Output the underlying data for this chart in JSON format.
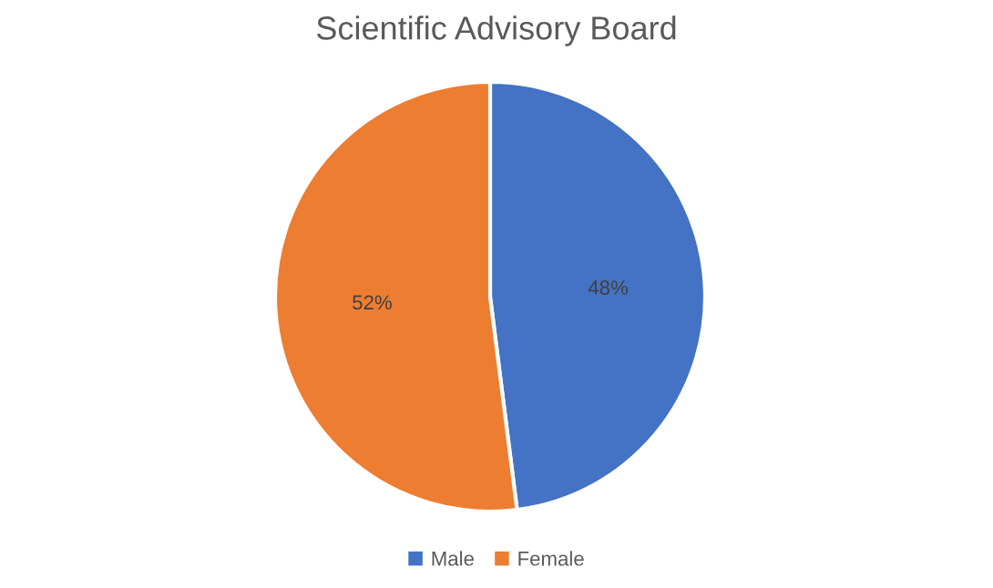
{
  "chart_data": {
    "type": "pie",
    "title": "Scientific Advisory Board",
    "categories": [
      "Male",
      "Female"
    ],
    "values": [
      48,
      52
    ],
    "colors": [
      "#4472c4",
      "#ed7d31"
    ],
    "value_labels": [
      "48%",
      "52%"
    ],
    "legend": "bottom"
  }
}
